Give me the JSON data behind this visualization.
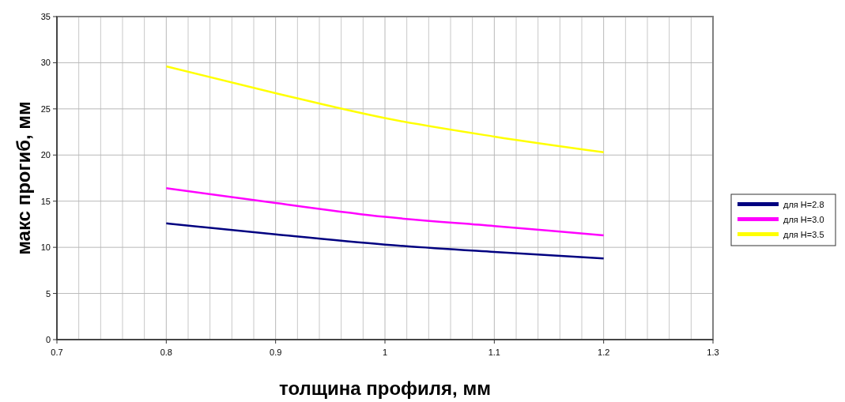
{
  "chart_data": {
    "type": "line",
    "xlabel": "толщина профиля, мм",
    "ylabel": "макс прогиб, мм",
    "x": [
      0.8,
      0.9,
      1.0,
      1.1,
      1.2
    ],
    "series": [
      {
        "name": "для H=2.8",
        "color": "#000080",
        "values": [
          12.6,
          11.4,
          10.3,
          9.5,
          8.8
        ]
      },
      {
        "name": "для H=3.0",
        "color": "#ff00ff",
        "values": [
          16.4,
          14.8,
          13.3,
          12.3,
          11.3
        ]
      },
      {
        "name": "для H=3.5",
        "color": "#ffff00",
        "values": [
          29.6,
          26.7,
          24.0,
          22.0,
          20.3
        ]
      }
    ],
    "xlim": [
      0.7,
      1.3
    ],
    "xticks": [
      0.7,
      0.8,
      0.9,
      1,
      1.1,
      1.2,
      1.3
    ],
    "ylim": [
      0,
      35
    ],
    "yticks": [
      0,
      5,
      10,
      15,
      20,
      25,
      30,
      35
    ],
    "grid": true,
    "legend": "right",
    "marker": "none",
    "line_style": "solid"
  }
}
